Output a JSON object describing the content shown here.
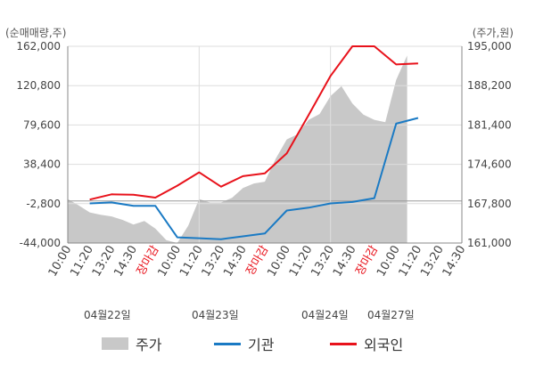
{
  "left_unit": "(순매매량,주)",
  "right_unit": "(주가,원)",
  "left_ticks": [
    "162,000",
    "120,800",
    "79,600",
    "38,400",
    "-2,800",
    "-44,000"
  ],
  "right_ticks": [
    "195,000",
    "188,200",
    "181,400",
    "174,600",
    "167,800",
    "161,000"
  ],
  "x_ticks": [
    "10:00",
    "11:20",
    "13:20",
    "14:30",
    "장마감",
    "10:00",
    "11:20",
    "13:20",
    "14:30",
    "장마감",
    "10:00",
    "11:20",
    "13:20",
    "14:30",
    "장마감",
    "10:00",
    "11:20",
    "13:20",
    "14:30"
  ],
  "dates": [
    "04월22일",
    "04월23일",
    "04월24일",
    "04월27일"
  ],
  "legend": {
    "price": "주가",
    "inst": "기관",
    "foreign": "외국인"
  },
  "colors": {
    "price": "#c8c8c8",
    "inst": "#1a7ac4",
    "foreign": "#e8121b",
    "grid": "#dddddd",
    "axis": "#888888"
  },
  "chart_data": {
    "type": "line",
    "left_ylim": [
      -44000,
      162000
    ],
    "right_ylim": [
      161000,
      195000
    ],
    "series": [
      {
        "name": "주가",
        "axis": "right",
        "kind": "area",
        "x": [
          0,
          0.5,
          1,
          1.5,
          2,
          2.5,
          3,
          3.5,
          4,
          4.5,
          5,
          5.5,
          6,
          6.5,
          7,
          7.5,
          8,
          8.5,
          9,
          9.5,
          10,
          10.5,
          11,
          11.5,
          12,
          12.5,
          13,
          13.5,
          14,
          14.5,
          15,
          15.5
        ],
        "values": [
          168600,
          167500,
          166300,
          165900,
          165600,
          165000,
          164200,
          164800,
          163500,
          161500,
          161000,
          164000,
          168600,
          168000,
          168000,
          168800,
          170500,
          171300,
          171600,
          175600,
          178900,
          179800,
          182300,
          183300,
          186400,
          188100,
          185100,
          183200,
          182300,
          181900,
          189200,
          193400
        ]
      },
      {
        "name": "기관",
        "axis": "left",
        "x": [
          1,
          2,
          3,
          4,
          5,
          6,
          7,
          8,
          9,
          10,
          11,
          12,
          13,
          14,
          15,
          16
        ],
        "values": [
          -2500,
          -1500,
          -5000,
          -5000,
          -38000,
          -39000,
          -40000,
          -37000,
          -34000,
          -10000,
          -7000,
          -2500,
          -1000,
          3000,
          81000,
          87000
        ]
      },
      {
        "name": "외국인",
        "axis": "left",
        "x": [
          1,
          2,
          3,
          4,
          5,
          6,
          7,
          8,
          9,
          10,
          11,
          12,
          13,
          14,
          15,
          16
        ],
        "values": [
          1500,
          7000,
          6500,
          3500,
          16000,
          30000,
          15000,
          26000,
          29000,
          50000,
          90000,
          131000,
          162000,
          162000,
          143000,
          144000
        ]
      }
    ]
  }
}
